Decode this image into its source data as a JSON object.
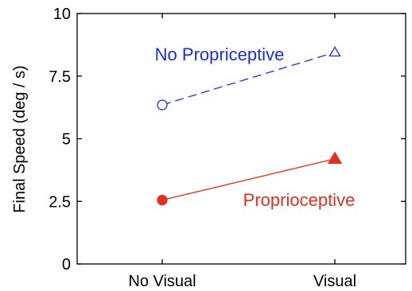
{
  "chart_data": {
    "type": "line",
    "categories": [
      "No Visual",
      "Visual"
    ],
    "title": "",
    "xlabel": "",
    "ylabel": "Final Speed (deg / s)",
    "ylim": [
      0,
      10
    ],
    "yticks": [
      0,
      2.5,
      5,
      7.5,
      10
    ],
    "ytick_labels": [
      "0",
      "2.5",
      "5",
      "7.5",
      "10"
    ],
    "grid": false,
    "legend": "none",
    "series": [
      {
        "name": "No Propriceptive",
        "values": [
          6.35,
          8.45
        ],
        "color": "#1a2fd6",
        "line_style": "dashed",
        "markers": [
          "open-circle",
          "open-triangle"
        ],
        "label_near": "upper line"
      },
      {
        "name": "Proprioceptive",
        "values": [
          2.55,
          4.2
        ],
        "color": "#e0301e",
        "line_style": "solid",
        "markers": [
          "filled-circle",
          "filled-triangle"
        ],
        "label_near": "lower line"
      }
    ]
  }
}
